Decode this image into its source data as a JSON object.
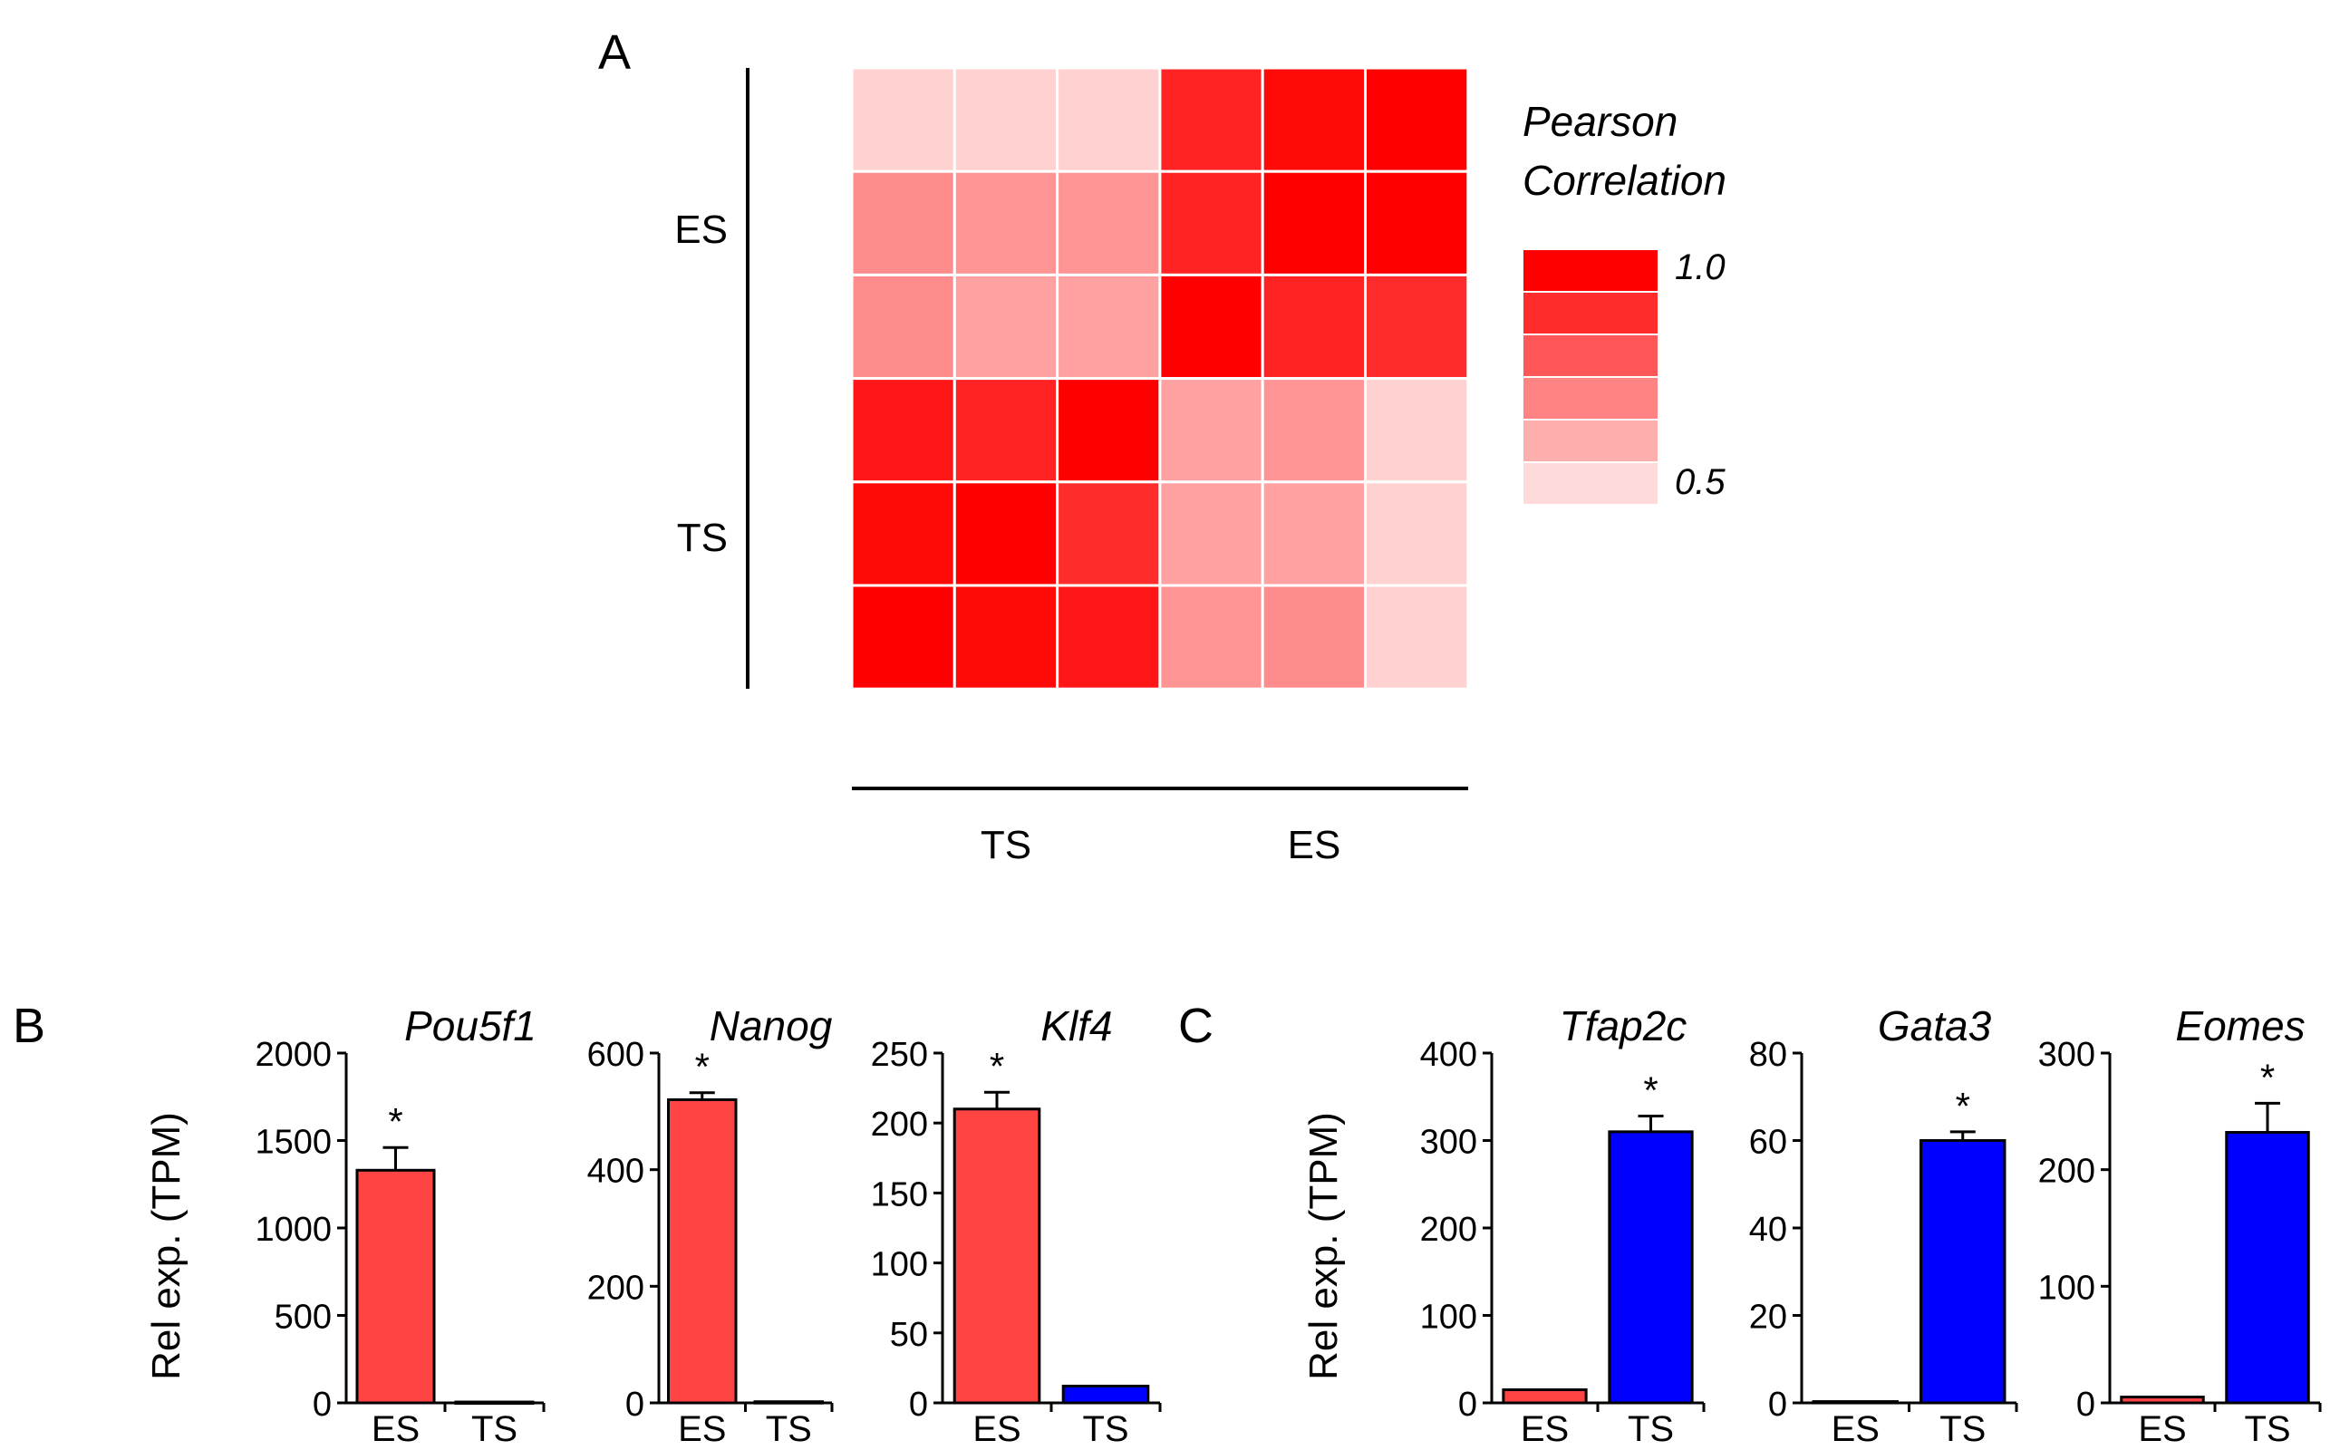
{
  "panel_labels": {
    "a": "A",
    "b": "B",
    "c": "C"
  },
  "chart_data": [
    {
      "id": "A",
      "type": "heatmap",
      "title": "",
      "row_groups": [
        "ES",
        "TS"
      ],
      "col_groups": [
        "TS",
        "ES"
      ],
      "legend": {
        "title_line1": "Pearson",
        "title_line2": "Correlation",
        "max_label": "1.0",
        "min_label": "0.5",
        "range": [
          0.5,
          1.0
        ],
        "steps": 6
      },
      "values": [
        [
          0.52,
          0.52,
          0.52,
          0.92,
          0.98,
          1.0
        ],
        [
          0.68,
          0.66,
          0.66,
          0.92,
          1.0,
          1.0
        ],
        [
          0.68,
          0.63,
          0.63,
          1.0,
          0.92,
          0.9
        ],
        [
          0.95,
          0.92,
          1.0,
          0.63,
          0.66,
          0.52
        ],
        [
          0.98,
          1.0,
          0.9,
          0.63,
          0.63,
          0.52
        ],
        [
          1.0,
          0.98,
          0.95,
          0.66,
          0.68,
          0.52
        ]
      ]
    },
    {
      "id": "B1",
      "type": "bar",
      "title": "Pou5f1",
      "ylabel": "Rel exp. (TPM)",
      "categories": [
        "ES",
        "TS"
      ],
      "values": [
        1330,
        5
      ],
      "errors": [
        130,
        0
      ],
      "ylim": [
        0,
        2000
      ],
      "yticks": [
        "0",
        "500",
        "1000",
        "1500",
        "2000"
      ],
      "bar_colors": [
        "#ff4444",
        "#0000ff"
      ],
      "significance": [
        "*",
        ""
      ]
    },
    {
      "id": "B2",
      "type": "bar",
      "title": "Nanog",
      "ylabel": "",
      "categories": [
        "ES",
        "TS"
      ],
      "values": [
        520,
        2
      ],
      "errors": [
        12,
        0
      ],
      "ylim": [
        0,
        600
      ],
      "yticks": [
        "0",
        "200",
        "400",
        "600"
      ],
      "bar_colors": [
        "#ff4444",
        "#0000ff"
      ],
      "significance": [
        "*",
        ""
      ]
    },
    {
      "id": "B3",
      "type": "bar",
      "title": "Klf4",
      "ylabel": "",
      "categories": [
        "ES",
        "TS"
      ],
      "values": [
        210,
        12
      ],
      "errors": [
        12,
        0
      ],
      "ylim": [
        0,
        250
      ],
      "yticks": [
        "0",
        "50",
        "100",
        "150",
        "200",
        "250"
      ],
      "bar_colors": [
        "#ff4444",
        "#0000ff"
      ],
      "significance": [
        "*",
        ""
      ]
    },
    {
      "id": "C1",
      "type": "bar",
      "title": "Tfap2c",
      "ylabel": "Rel exp. (TPM)",
      "categories": [
        "ES",
        "TS"
      ],
      "values": [
        15,
        310
      ],
      "errors": [
        0,
        18
      ],
      "ylim": [
        0,
        400
      ],
      "yticks": [
        "0",
        "100",
        "200",
        "300",
        "400"
      ],
      "bar_colors": [
        "#ff4444",
        "#0000ff"
      ],
      "significance": [
        "",
        "*"
      ]
    },
    {
      "id": "C2",
      "type": "bar",
      "title": "Gata3",
      "ylabel": "",
      "categories": [
        "ES",
        "TS"
      ],
      "values": [
        0.3,
        60
      ],
      "errors": [
        0,
        2
      ],
      "ylim": [
        0,
        80
      ],
      "yticks": [
        "0",
        "20",
        "40",
        "60",
        "80"
      ],
      "bar_colors": [
        "#ff4444",
        "#0000ff"
      ],
      "significance": [
        "",
        "*"
      ]
    },
    {
      "id": "C3",
      "type": "bar",
      "title": "Eomes",
      "ylabel": "",
      "categories": [
        "ES",
        "TS"
      ],
      "values": [
        5,
        232
      ],
      "errors": [
        0,
        25
      ],
      "ylim": [
        0,
        300
      ],
      "yticks": [
        "0",
        "100",
        "200",
        "300"
      ],
      "bar_colors": [
        "#ff4444",
        "#0000ff"
      ],
      "significance": [
        "",
        "*"
      ]
    }
  ]
}
